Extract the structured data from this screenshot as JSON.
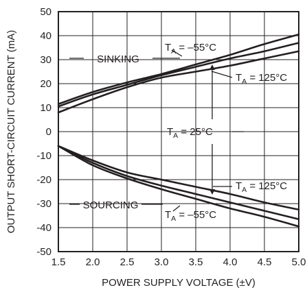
{
  "chart_data": {
    "type": "line",
    "title": "",
    "xlabel": "POWER SUPPLY VOLTAGE (±V)",
    "ylabel": "OUTPUT SHORT-CIRCUIT CURRENT (mA)",
    "xlim": [
      1.5,
      5.0
    ],
    "ylim": [
      -50,
      50
    ],
    "x_ticks": [
      "1.5",
      "2.0",
      "2.5",
      "3.0",
      "3.5",
      "4.0",
      "4.5",
      "5.0"
    ],
    "y_ticks": [
      "50",
      "40",
      "30",
      "20",
      "10",
      "0",
      "-10",
      "-20",
      "-30",
      "-40",
      "-50"
    ],
    "grid": true,
    "annotations": {
      "sinking": "SINKING",
      "sourcing": "SOURCING",
      "ta_prefix": "T",
      "ta_sub": "A",
      "ta_minus55": " = –55°C",
      "ta_125": " = 125°C",
      "ta_25": " = 25°C"
    },
    "series": [
      {
        "x": [
          1.5,
          2.0,
          2.5,
          3.0,
          3.5,
          4.0,
          4.5,
          5.0
        ],
        "values": [
          11.5,
          16.5,
          20.5,
          24.0,
          28.0,
          32.0,
          36.5,
          40.5
        ]
      },
      {
        "x": [
          1.5,
          2.0,
          2.5,
          3.0,
          3.5,
          4.0,
          4.5,
          5.0
        ],
        "values": [
          10.5,
          15.5,
          19.5,
          23.5,
          27.0,
          30.5,
          33.5,
          37.0
        ]
      },
      {
        "x": [
          1.5,
          2.0,
          2.5,
          3.0,
          3.5,
          4.0,
          4.5,
          5.0
        ],
        "values": [
          8.0,
          13.5,
          18.5,
          22.5,
          25.0,
          27.5,
          30.5,
          33.5
        ]
      },
      {
        "x": [
          1.5,
          2.0,
          2.5,
          3.0,
          3.5,
          4.0,
          4.5,
          5.0
        ],
        "values": [
          -6.0,
          -12.0,
          -17.0,
          -20.0,
          -23.0,
          -26.0,
          -29.5,
          -32.5
        ]
      },
      {
        "x": [
          1.5,
          2.0,
          2.5,
          3.0,
          3.5,
          4.0,
          4.5,
          5.0
        ],
        "values": [
          -6.0,
          -13.0,
          -18.5,
          -22.5,
          -26.0,
          -29.5,
          -33.0,
          -36.5
        ]
      },
      {
        "x": [
          1.5,
          2.0,
          2.5,
          3.0,
          3.5,
          4.0,
          4.5,
          5.0
        ],
        "values": [
          -6.0,
          -14.0,
          -19.5,
          -24.0,
          -28.0,
          -32.0,
          -35.5,
          -39.5
        ]
      }
    ]
  }
}
